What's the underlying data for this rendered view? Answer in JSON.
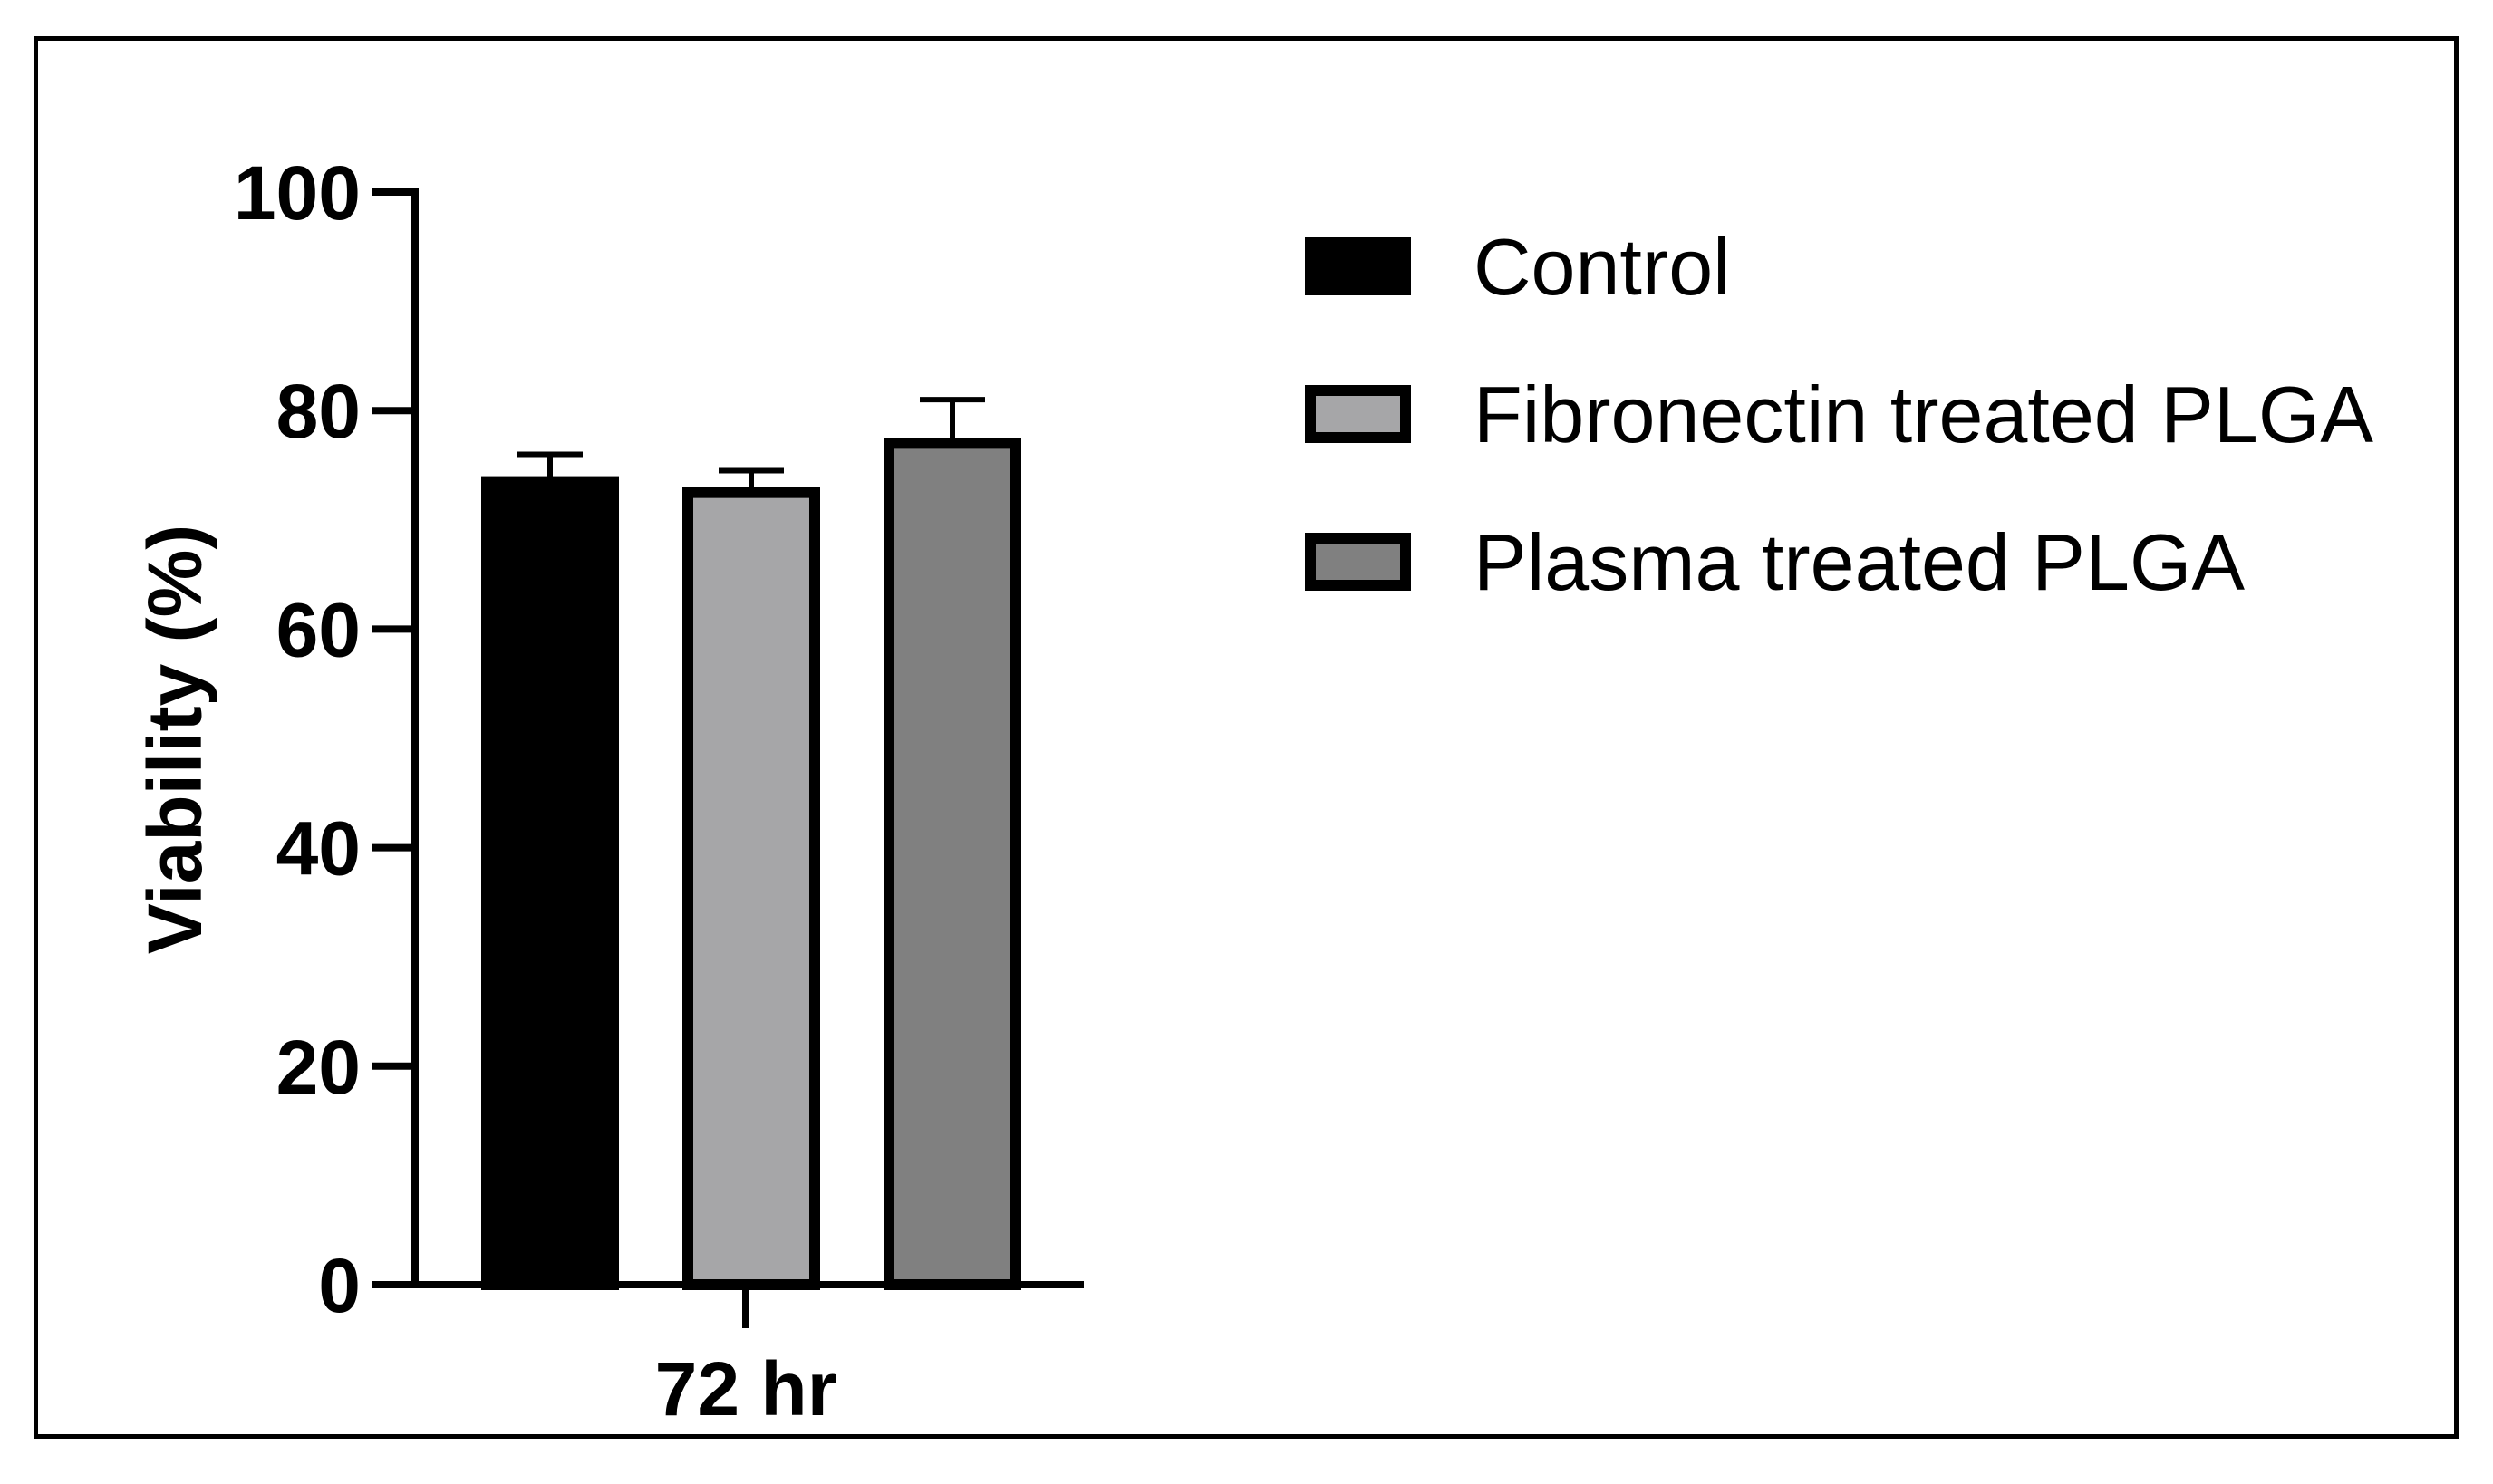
{
  "chart_data": {
    "type": "bar",
    "title": "",
    "xlabel": "",
    "ylabel": "Viability (%)",
    "ylim": [
      0,
      100
    ],
    "yticks": [
      0,
      20,
      40,
      60,
      80,
      100
    ],
    "categories": [
      "72 hr"
    ],
    "series": [
      {
        "name": "Control",
        "values": [
          73.5
        ],
        "error": [
          2.5
        ],
        "color": "#000000"
      },
      {
        "name": "Fibronectin treated PLGA",
        "values": [
          72.5
        ],
        "error": [
          2.0
        ],
        "color": "#a6a6a8"
      },
      {
        "name": "Plasma treated PLGA",
        "values": [
          77.0
        ],
        "error": [
          4.0
        ],
        "color": "#808080"
      }
    ],
    "legend_position": "top-right"
  }
}
